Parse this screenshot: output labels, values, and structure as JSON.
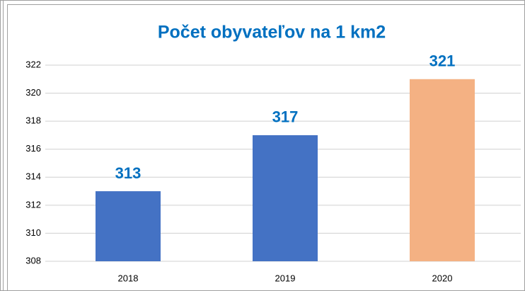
{
  "chart_data": {
    "type": "bar",
    "title": "Počet obyvateľov na 1 km2",
    "categories": [
      "2018",
      "2019",
      "2020"
    ],
    "values": [
      313,
      317,
      321
    ],
    "colors": [
      "#4472c4",
      "#4472c4",
      "#f4b183"
    ],
    "label_color": "#0070c0",
    "ylim": [
      308,
      322
    ],
    "yticks": [
      308,
      310,
      312,
      314,
      316,
      318,
      320,
      322
    ],
    "grid": true
  }
}
